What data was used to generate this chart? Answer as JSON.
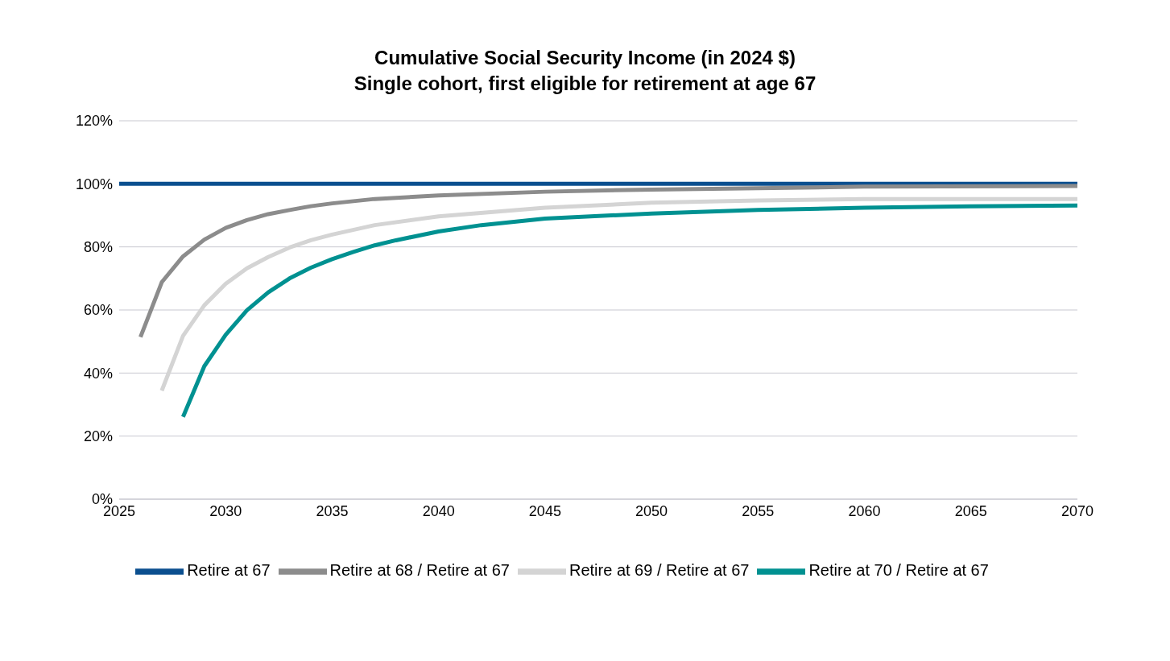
{
  "chart_data": {
    "type": "line",
    "title": "Cumulative Social Security Income (in 2024 $)",
    "subtitle": "Single cohort, first eligible for retirement at age 67",
    "xlim": [
      2025,
      2070
    ],
    "xticks": [
      2025,
      2030,
      2035,
      2040,
      2045,
      2050,
      2055,
      2060,
      2065,
      2070
    ],
    "ylim": [
      0,
      120
    ],
    "yticks": [
      {
        "value": 0,
        "label": "0%"
      },
      {
        "value": 20,
        "label": "20%"
      },
      {
        "value": 40,
        "label": "40%"
      },
      {
        "value": 60,
        "label": "60%"
      },
      {
        "value": 80,
        "label": "80%"
      },
      {
        "value": 100,
        "label": "100%"
      },
      {
        "value": 120,
        "label": "120%"
      }
    ],
    "grid": "y",
    "legend": "bottom",
    "marker": "none",
    "line_style": "solid",
    "series": [
      {
        "name": "Retire at 67",
        "color": "#0b4f8f",
        "x": [
          2025,
          2030,
          2035,
          2040,
          2045,
          2050,
          2055,
          2060,
          2065,
          2070
        ],
        "values": [
          100,
          100,
          100,
          100,
          100,
          100,
          100,
          100,
          100,
          100
        ]
      },
      {
        "name": "Retire at 68 / Retire at 67",
        "color": "#8c8c8c",
        "x": [
          2026,
          2027,
          2028,
          2029,
          2030,
          2031,
          2032,
          2033,
          2034,
          2035,
          2037,
          2040,
          2045,
          2050,
          2055,
          2060,
          2070
        ],
        "values": [
          51.4,
          68.8,
          77,
          82.3,
          86,
          88.5,
          90.4,
          91.7,
          92.9,
          93.8,
          95.2,
          96.3,
          97.5,
          98.2,
          98.6,
          99.1,
          99.3
        ]
      },
      {
        "name": "Retire at 69 / Retire at 67",
        "color": "#d4d4d4",
        "x": [
          2027,
          2028,
          2029,
          2030,
          2031,
          2032,
          2033,
          2034,
          2035,
          2037,
          2040,
          2045,
          2050,
          2055,
          2060,
          2070
        ],
        "values": [
          34.4,
          51.8,
          61.5,
          68.3,
          73.2,
          76.8,
          79.8,
          82.1,
          83.9,
          86.9,
          89.7,
          92.4,
          94,
          94.7,
          95.2,
          95.2
        ]
      },
      {
        "name": "Retire at 70 / Retire at 67",
        "color": "#009191",
        "x": [
          2028,
          2029,
          2030,
          2031,
          2032,
          2033,
          2034,
          2035,
          2036,
          2037,
          2038,
          2040,
          2042,
          2045,
          2050,
          2055,
          2060,
          2065,
          2070
        ],
        "values": [
          26.1,
          42.2,
          52.1,
          59.9,
          65.6,
          70,
          73.4,
          76.1,
          78.4,
          80.5,
          82.1,
          84.9,
          86.9,
          89,
          90.6,
          91.7,
          92.4,
          92.9,
          93.1
        ]
      }
    ]
  }
}
